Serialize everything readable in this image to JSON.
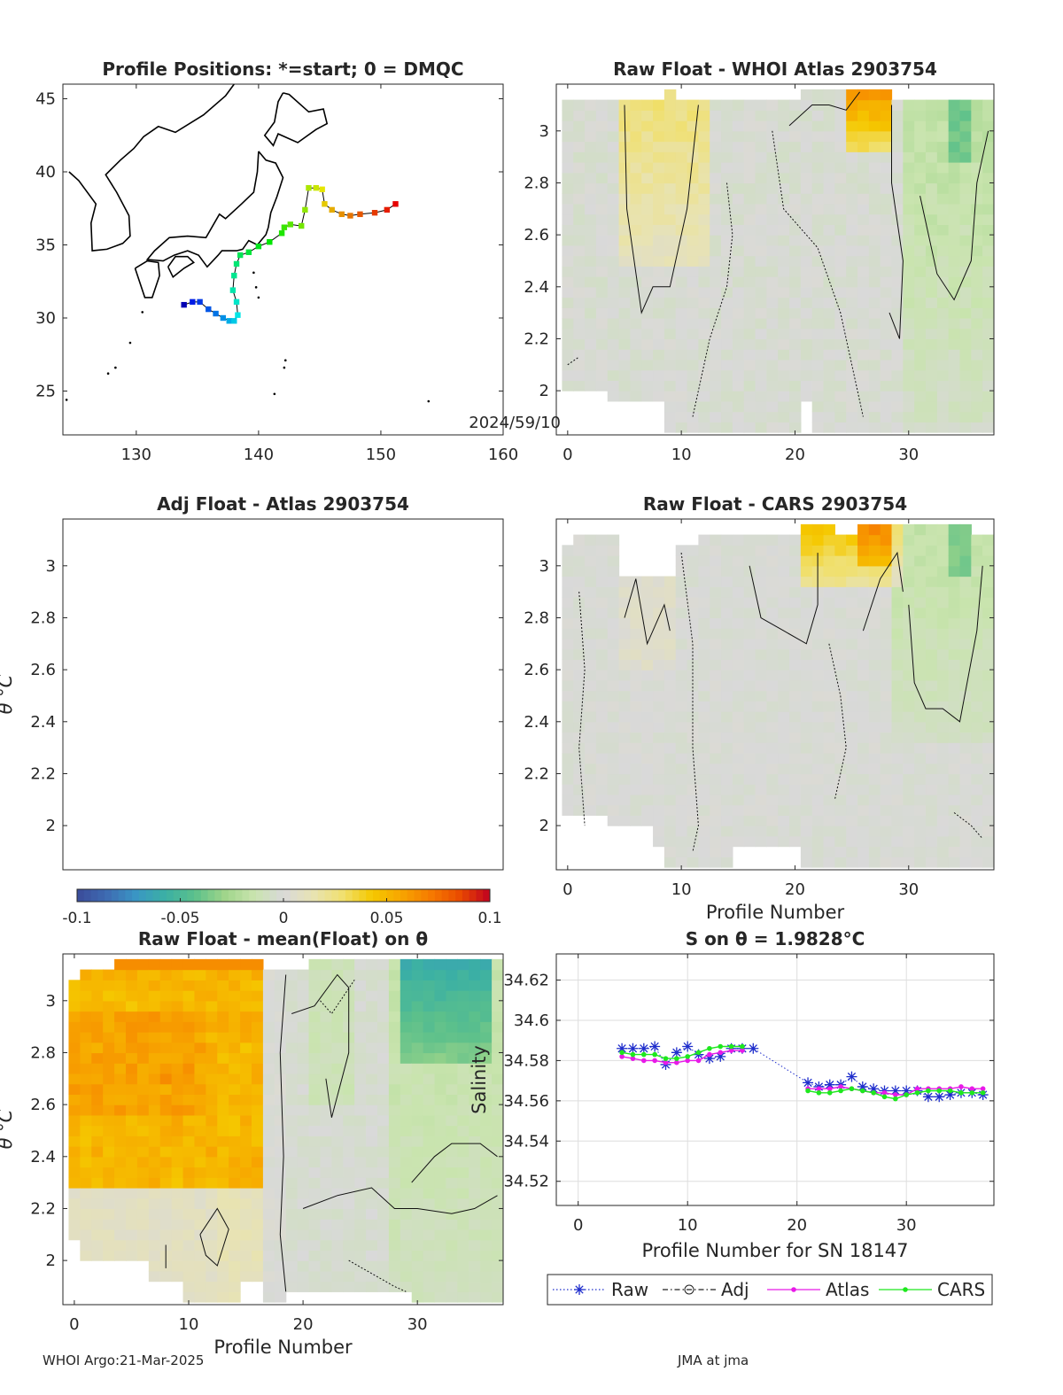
{
  "figure": {
    "footer_left": "WHOI Argo:21-Mar-2025",
    "footer_right": "JMA at jma",
    "colors": {
      "colormap": [
        "#3b4b99",
        "#3e6bb2",
        "#3a96c4",
        "#3bb0a4",
        "#5cc08b",
        "#9fd58a",
        "#c9e4ae",
        "#d9d9d9",
        "#e8e3b3",
        "#f0e070",
        "#f5c800",
        "#f7a500",
        "#f67a00",
        "#e94a00",
        "#c00020"
      ],
      "raw": "#1f2ecc",
      "adj": "#202020",
      "atlas": "#e81ae8",
      "cars": "#1ee81e"
    }
  },
  "chart_data": [
    {
      "id": "positions",
      "type": "scatter",
      "title": "Profile Positions: *=start; 0 = DMQC",
      "xlim": [
        124,
        160
      ],
      "ylim": [
        22,
        46
      ],
      "xticks": [
        130,
        140,
        150,
        160
      ],
      "yticks": [
        25,
        30,
        35,
        40,
        45
      ],
      "annotation": "2024/59/10",
      "track_lon": [
        133.9,
        134.6,
        135.2,
        135.9,
        136.5,
        137.1,
        137.6,
        138.0,
        138.3,
        138.2,
        137.9,
        138.0,
        138.2,
        138.5,
        139.2,
        140.0,
        140.9,
        141.9,
        142.1,
        142.6,
        143.5,
        143.8,
        144.1,
        144.7,
        145.2,
        145.4,
        146.0,
        146.8,
        147.5,
        148.3,
        149.5,
        150.5,
        151.2
      ],
      "track_lat": [
        30.9,
        31.1,
        31.1,
        30.6,
        30.3,
        30.0,
        29.8,
        29.8,
        30.2,
        31.1,
        31.9,
        32.9,
        33.7,
        34.3,
        34.5,
        34.9,
        35.2,
        35.8,
        36.2,
        36.4,
        36.3,
        37.4,
        38.9,
        38.9,
        38.8,
        37.8,
        37.4,
        37.1,
        37.0,
        37.1,
        37.2,
        37.4,
        37.8
      ]
    },
    {
      "id": "raw_atlas",
      "type": "heatmap",
      "title": "Raw Float - WHOI Atlas  2903754",
      "xlim": [
        -1,
        37.5
      ],
      "ylim": [
        1.83,
        3.18
      ],
      "xticks": [
        0,
        10,
        20,
        30
      ],
      "yticks": [
        2,
        2.2,
        2.4,
        2.6,
        2.8,
        3
      ],
      "clim": [
        -0.1,
        0.1
      ]
    },
    {
      "id": "adj_atlas",
      "type": "heatmap",
      "title": "Adj Float - Atlas  2903754",
      "ylabel": "θ °C",
      "xlim": [
        -1,
        37.5
      ],
      "ylim": [
        1.83,
        3.18
      ],
      "yticks": [
        2,
        2.2,
        2.4,
        2.6,
        2.8,
        3
      ],
      "colorbar_ticks": [
        "-0.1",
        "-0.05",
        "0",
        "0.05",
        "0.1"
      ],
      "clim": [
        -0.1,
        0.1
      ]
    },
    {
      "id": "raw_cars",
      "type": "heatmap",
      "title": "Raw Float - CARS  2903754",
      "xlabel": "Profile Number",
      "xlim": [
        -1,
        37.5
      ],
      "ylim": [
        1.83,
        3.18
      ],
      "xticks": [
        0,
        10,
        20,
        30
      ],
      "yticks": [
        2,
        2.2,
        2.4,
        2.6,
        2.8,
        3
      ],
      "clim": [
        -0.1,
        0.1
      ]
    },
    {
      "id": "raw_mean",
      "type": "heatmap",
      "title": "Raw Float - mean(Float) on θ",
      "xlabel": "Profile Number",
      "ylabel": "θ °C",
      "xlim": [
        -1,
        37.5
      ],
      "ylim": [
        1.83,
        3.18
      ],
      "xticks": [
        0,
        10,
        20,
        30
      ],
      "yticks": [
        2,
        2.2,
        2.4,
        2.6,
        2.8,
        3
      ],
      "clim": [
        -0.1,
        0.1
      ]
    },
    {
      "id": "s_on_theta",
      "type": "line",
      "title": "S on θ = 1.9828°C",
      "xlabel": "Profile Number for SN 18147",
      "ylabel": "Salinity",
      "xlim": [
        -2,
        38
      ],
      "ylim": [
        34.508,
        34.633
      ],
      "xticks": [
        0,
        10,
        20,
        30
      ],
      "yticks": [
        34.52,
        34.54,
        34.56,
        34.58,
        34.6,
        34.62
      ],
      "grid": true,
      "legend": [
        "Raw",
        "Adj",
        "Atlas",
        "CARS"
      ],
      "series": [
        {
          "name": "Raw",
          "x": [
            4,
            5,
            6,
            7,
            8,
            9,
            10,
            11,
            12,
            13,
            14,
            15,
            16,
            21,
            22,
            23,
            24,
            25,
            26,
            27,
            28,
            29,
            30,
            31,
            32,
            33,
            34,
            35,
            36,
            37
          ],
          "y": [
            34.586,
            34.586,
            34.586,
            34.587,
            34.578,
            34.584,
            34.587,
            34.583,
            34.581,
            34.582,
            34.586,
            34.586,
            34.586,
            34.569,
            34.567,
            34.568,
            34.568,
            34.572,
            34.567,
            34.566,
            34.565,
            34.565,
            34.565,
            34.565,
            34.562,
            34.562,
            34.563,
            34.564,
            34.564,
            34.563
          ]
        },
        {
          "name": "Atlas",
          "x": [
            4,
            5,
            6,
            7,
            8,
            9,
            10,
            11,
            12,
            13,
            14,
            15,
            21,
            22,
            23,
            24,
            25,
            26,
            27,
            28,
            29,
            30,
            31,
            32,
            33,
            34,
            35,
            36,
            37
          ],
          "y": [
            34.582,
            34.581,
            34.58,
            34.58,
            34.579,
            34.579,
            34.58,
            34.58,
            34.583,
            34.584,
            34.585,
            34.585,
            34.566,
            34.566,
            34.566,
            34.567,
            34.566,
            34.565,
            34.564,
            34.564,
            34.563,
            34.563,
            34.566,
            34.566,
            34.566,
            34.566,
            34.567,
            34.566,
            34.566
          ]
        },
        {
          "name": "CARS",
          "x": [
            4,
            5,
            6,
            7,
            8,
            9,
            10,
            11,
            12,
            13,
            14,
            15,
            21,
            22,
            23,
            24,
            25,
            26,
            27,
            28,
            29,
            30,
            31,
            32,
            33,
            34,
            35,
            36,
            37
          ],
          "y": [
            34.584,
            34.583,
            34.583,
            34.583,
            34.581,
            34.581,
            34.582,
            34.584,
            34.586,
            34.587,
            34.587,
            34.587,
            34.565,
            34.564,
            34.564,
            34.565,
            34.566,
            34.565,
            34.564,
            34.562,
            34.561,
            34.563,
            34.564,
            34.565,
            34.565,
            34.565,
            34.564,
            34.564,
            34.564
          ]
        }
      ]
    }
  ]
}
